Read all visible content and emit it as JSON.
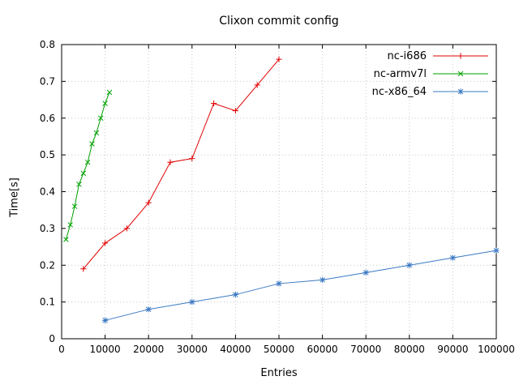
{
  "chart_data": {
    "type": "line",
    "title": "Clixon commit config",
    "xlabel": "Entries",
    "ylabel": "Time[s]",
    "xlim": [
      0,
      100000
    ],
    "ylim": [
      0,
      0.8
    ],
    "x_ticks": [
      0,
      10000,
      20000,
      30000,
      40000,
      50000,
      60000,
      70000,
      80000,
      90000,
      100000
    ],
    "y_ticks": [
      0,
      0.1,
      0.2,
      0.3,
      0.4,
      0.5,
      0.6,
      0.7,
      0.8
    ],
    "grid": true,
    "legend_position": "top-right-inside",
    "colors": {
      "axis": "#000000",
      "grid": "#c8c8c8"
    },
    "series": [
      {
        "name": "nc-i686",
        "color": "#e00000",
        "marker": "plus",
        "x": [
          5000,
          10000,
          15000,
          20000,
          25000,
          30000,
          35000,
          40000,
          45000,
          50000
        ],
        "y": [
          0.19,
          0.26,
          0.3,
          0.37,
          0.48,
          0.49,
          0.64,
          0.62,
          0.69,
          0.76
        ]
      },
      {
        "name": "nc-armv7l",
        "color": "#00a000",
        "marker": "x",
        "x": [
          1000,
          2000,
          3000,
          4000,
          5000,
          6000,
          7000,
          8000,
          9000,
          10000,
          11000
        ],
        "y": [
          0.27,
          0.31,
          0.36,
          0.42,
          0.45,
          0.48,
          0.53,
          0.56,
          0.6,
          0.64,
          0.67
        ]
      },
      {
        "name": "nc-x86_64",
        "color": "#3a78c3",
        "marker": "asterisk",
        "x": [
          10000,
          20000,
          30000,
          40000,
          50000,
          60000,
          70000,
          80000,
          90000,
          100000
        ],
        "y": [
          0.05,
          0.08,
          0.1,
          0.12,
          0.15,
          0.16,
          0.18,
          0.2,
          0.22,
          0.24
        ]
      }
    ]
  }
}
